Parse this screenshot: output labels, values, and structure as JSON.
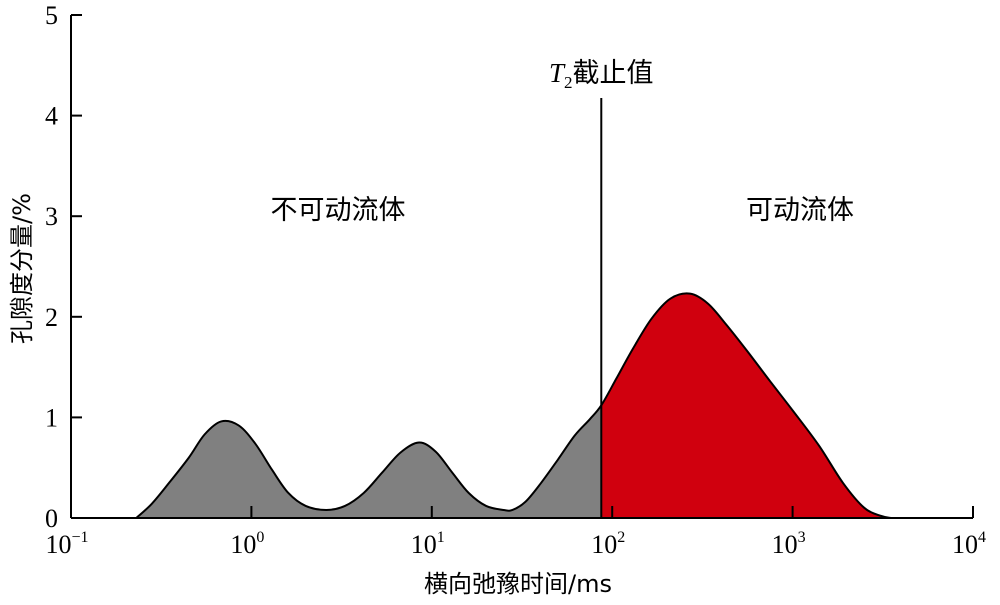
{
  "chart_data": {
    "type": "area",
    "xlabel": "横向弛豫时间/ms",
    "ylabel": "孔隙度分量/%",
    "x_scale": "log",
    "xlim": [
      0.1,
      10000
    ],
    "ylim": [
      0,
      5
    ],
    "x_ticks": [
      {
        "value": 0.1,
        "base": "10",
        "exp": "−1"
      },
      {
        "value": 1,
        "base": "10",
        "exp": "0"
      },
      {
        "value": 10,
        "base": "10",
        "exp": "1"
      },
      {
        "value": 100,
        "base": "10",
        "exp": "2"
      },
      {
        "value": 1000,
        "base": "10",
        "exp": "3"
      },
      {
        "value": 10000,
        "base": "10",
        "exp": "4"
      }
    ],
    "y_ticks": [
      "0",
      "1",
      "2",
      "3",
      "4",
      "5"
    ],
    "grid": false,
    "cutoff": {
      "x": 87,
      "label_prefix": "T",
      "label_sub": "2",
      "label_suffix": "截止值"
    },
    "regions": [
      {
        "name": "不可动流体",
        "color": "#808080"
      },
      {
        "name": "可动流体",
        "color": "#d0000e"
      }
    ],
    "series": [
      {
        "x": [
          0.23,
          0.28,
          0.35,
          0.45,
          0.55,
          0.68,
          0.85,
          1.05,
          1.3,
          1.6,
          2.0,
          2.6,
          3.3,
          4.2,
          5.3,
          6.7,
          8.5,
          10.5,
          13,
          16,
          20,
          25,
          28,
          33,
          40,
          50,
          62,
          75,
          87,
          105,
          130,
          165,
          210,
          270,
          340,
          430,
          560,
          750,
          1000,
          1400,
          1900,
          2500,
          3100,
          3500
        ],
        "y": [
          0.0,
          0.14,
          0.35,
          0.6,
          0.83,
          0.96,
          0.92,
          0.74,
          0.48,
          0.25,
          0.12,
          0.08,
          0.12,
          0.25,
          0.45,
          0.65,
          0.75,
          0.66,
          0.45,
          0.25,
          0.12,
          0.08,
          0.08,
          0.16,
          0.34,
          0.58,
          0.82,
          0.98,
          1.12,
          1.38,
          1.68,
          1.98,
          2.18,
          2.23,
          2.13,
          1.92,
          1.66,
          1.36,
          1.07,
          0.72,
          0.35,
          0.1,
          0.02,
          0.0
        ]
      }
    ]
  }
}
